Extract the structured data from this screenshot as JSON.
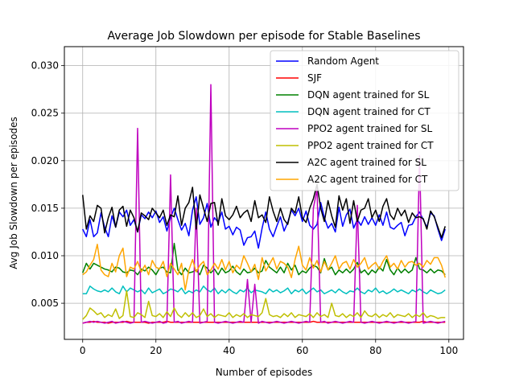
{
  "chart_data": {
    "type": "line",
    "title": "Average Job Slowdown per episode for Stable Baselines",
    "xlabel": "Number of episodes",
    "ylabel": "Avg Job Slowdown per episodes",
    "xlim": [
      -5,
      104
    ],
    "ylim": [
      0.0012,
      0.032
    ],
    "xticks": [
      0,
      20,
      40,
      60,
      80,
      100
    ],
    "yticks": [
      0.005,
      0.01,
      0.015,
      0.02,
      0.025,
      0.03
    ],
    "ytick_labels": [
      "0.005",
      "0.010",
      "0.015",
      "0.020",
      "0.025",
      "0.030"
    ],
    "grid": true,
    "legend_position": "top-right",
    "series": [
      {
        "name": "Random Agent",
        "color": "#0000ff",
        "values": [
          0.0128,
          0.012,
          0.0138,
          0.012,
          0.0124,
          0.0145,
          0.013,
          0.012,
          0.0142,
          0.013,
          0.0146,
          0.0141,
          0.0148,
          0.0132,
          0.0138,
          0.0125,
          0.0143,
          0.0139,
          0.0146,
          0.014,
          0.0147,
          0.0135,
          0.0141,
          0.0126,
          0.014,
          0.015,
          0.0138,
          0.0127,
          0.0134,
          0.0121,
          0.0148,
          0.0162,
          0.0133,
          0.014,
          0.0155,
          0.013,
          0.014,
          0.0135,
          0.0146,
          0.0128,
          0.0131,
          0.0122,
          0.013,
          0.0127,
          0.0111,
          0.0119,
          0.012,
          0.0126,
          0.0108,
          0.0129,
          0.0146,
          0.0128,
          0.012,
          0.0131,
          0.0141,
          0.0126,
          0.0135,
          0.0148,
          0.0142,
          0.015,
          0.0136,
          0.0147,
          0.0132,
          0.0128,
          0.0133,
          0.0156,
          0.014,
          0.0129,
          0.0134,
          0.0125,
          0.0151,
          0.0131,
          0.0143,
          0.0149,
          0.0129,
          0.0138,
          0.0132,
          0.0141,
          0.0133,
          0.014,
          0.0132,
          0.0143,
          0.0132,
          0.0146,
          0.013,
          0.0128,
          0.0132,
          0.0135,
          0.0121,
          0.0132,
          0.0133,
          0.0141,
          0.0146,
          0.0138,
          0.013,
          0.0145,
          0.0142,
          0.0128,
          0.0116,
          0.0128
        ]
      },
      {
        "name": "SJF",
        "color": "#ff0000",
        "values": [
          0.0029,
          0.003,
          0.003,
          0.0031,
          0.003,
          0.003,
          0.003,
          0.0029,
          0.003,
          0.003,
          0.003,
          0.003,
          0.0031,
          0.003,
          0.003,
          0.003,
          0.003,
          0.003,
          0.0029,
          0.003,
          0.003,
          0.003,
          0.003,
          0.0031,
          0.003,
          0.003,
          0.003,
          0.003,
          0.003,
          0.003,
          0.003,
          0.003,
          0.003,
          0.003,
          0.003,
          0.003,
          0.003,
          0.003,
          0.003,
          0.003,
          0.003,
          0.003,
          0.003,
          0.003,
          0.003,
          0.003,
          0.003,
          0.003,
          0.003,
          0.003,
          0.003,
          0.003,
          0.003,
          0.003,
          0.003,
          0.003,
          0.003,
          0.003,
          0.003,
          0.003,
          0.003,
          0.003,
          0.003,
          0.0031,
          0.003,
          0.003,
          0.003,
          0.003,
          0.003,
          0.003,
          0.003,
          0.003,
          0.003,
          0.003,
          0.003,
          0.003,
          0.003,
          0.003,
          0.003,
          0.003,
          0.003,
          0.003,
          0.003,
          0.003,
          0.003,
          0.003,
          0.003,
          0.003,
          0.003,
          0.003,
          0.003,
          0.003,
          0.003,
          0.0031,
          0.003,
          0.003,
          0.003,
          0.003,
          0.003,
          0.003
        ]
      },
      {
        "name": "DQN agent trained for SL",
        "color": "#008000",
        "values": [
          0.0082,
          0.0092,
          0.0086,
          0.0092,
          0.009,
          0.0088,
          0.0086,
          0.0085,
          0.0083,
          0.0088,
          0.0087,
          0.0083,
          0.0082,
          0.0085,
          0.0084,
          0.008,
          0.0086,
          0.0084,
          0.0088,
          0.0085,
          0.008,
          0.0087,
          0.0088,
          0.0083,
          0.0082,
          0.0113,
          0.0085,
          0.008,
          0.0087,
          0.0082,
          0.0083,
          0.0085,
          0.008,
          0.009,
          0.0087,
          0.0082,
          0.0086,
          0.008,
          0.0087,
          0.0082,
          0.0084,
          0.0089,
          0.0083,
          0.008,
          0.0086,
          0.0082,
          0.0083,
          0.0087,
          0.0082,
          0.0084,
          0.0095,
          0.0088,
          0.0085,
          0.0082,
          0.0088,
          0.0082,
          0.0092,
          0.0085,
          0.009,
          0.008,
          0.0084,
          0.0082,
          0.0087,
          0.009,
          0.0088,
          0.0082,
          0.0097,
          0.0085,
          0.0088,
          0.008,
          0.0085,
          0.0082,
          0.0086,
          0.0082,
          0.0086,
          0.0093,
          0.0082,
          0.0085,
          0.008,
          0.0085,
          0.0082,
          0.0088,
          0.0084,
          0.0096,
          0.0085,
          0.008,
          0.0087,
          0.0082,
          0.0086,
          0.0082,
          0.0085,
          0.0098,
          0.0086,
          0.0085,
          0.0082,
          0.0086,
          0.0082,
          0.0085,
          0.0084,
          0.008
        ]
      },
      {
        "name": "DQN agent trained for CT",
        "color": "#00bfbf",
        "values": [
          0.006,
          0.006,
          0.0068,
          0.0065,
          0.0063,
          0.0062,
          0.0064,
          0.0062,
          0.0066,
          0.0062,
          0.006,
          0.0068,
          0.0062,
          0.0066,
          0.0064,
          0.0062,
          0.0064,
          0.006,
          0.0066,
          0.0061,
          0.0063,
          0.0065,
          0.006,
          0.0062,
          0.0065,
          0.0064,
          0.0062,
          0.0066,
          0.006,
          0.0063,
          0.0061,
          0.0064,
          0.0062,
          0.0068,
          0.0064,
          0.0062,
          0.0066,
          0.006,
          0.0064,
          0.0061,
          0.0065,
          0.0062,
          0.006,
          0.0064,
          0.0062,
          0.0066,
          0.0061,
          0.0064,
          0.0063,
          0.0062,
          0.006,
          0.0065,
          0.0062,
          0.0064,
          0.0061,
          0.0063,
          0.0066,
          0.006,
          0.0064,
          0.0062,
          0.0065,
          0.006,
          0.0063,
          0.0066,
          0.0062,
          0.0064,
          0.006,
          0.0062,
          0.0064,
          0.0061,
          0.0065,
          0.0062,
          0.006,
          0.0063,
          0.0062,
          0.0066,
          0.0062,
          0.006,
          0.0064,
          0.0062,
          0.0066,
          0.0061,
          0.0063,
          0.006,
          0.0062,
          0.0065,
          0.0062,
          0.0064,
          0.0062,
          0.006,
          0.0064,
          0.0062,
          0.0065,
          0.0062,
          0.006,
          0.0064,
          0.0062,
          0.006,
          0.0061,
          0.0064
        ]
      },
      {
        "name": "PPO2 agent trained for SL",
        "color": "#bf00bf",
        "values": [
          0.0029,
          0.003,
          0.0031,
          0.003,
          0.0031,
          0.003,
          0.0029,
          0.003,
          0.0031,
          0.0029,
          0.003,
          0.0031,
          0.003,
          0.0029,
          0.003,
          0.0234,
          0.003,
          0.0031,
          0.003,
          0.0029,
          0.003,
          0.0031,
          0.0029,
          0.003,
          0.0185,
          0.003,
          0.0031,
          0.0029,
          0.003,
          0.0031,
          0.003,
          0.015,
          0.0029,
          0.003,
          0.0031,
          0.028,
          0.003,
          0.0029,
          0.003,
          0.0031,
          0.003,
          0.0029,
          0.003,
          0.0031,
          0.003,
          0.0075,
          0.003,
          0.007,
          0.0029,
          0.0031,
          0.003,
          0.0029,
          0.003,
          0.0031,
          0.003,
          0.0029,
          0.003,
          0.0031,
          0.003,
          0.0029,
          0.003,
          0.0031,
          0.003,
          0.015,
          0.017,
          0.003,
          0.0031,
          0.0029,
          0.003,
          0.0031,
          0.003,
          0.0029,
          0.003,
          0.0031,
          0.003,
          0.0153,
          0.003,
          0.0029,
          0.003,
          0.0031,
          0.003,
          0.0029,
          0.003,
          0.0031,
          0.003,
          0.0029,
          0.003,
          0.0031,
          0.003,
          0.0029,
          0.003,
          0.0031,
          0.0205,
          0.0029,
          0.003,
          0.0031,
          0.003,
          0.0029,
          0.003,
          0.0031
        ]
      },
      {
        "name": "PPO2 agent trained for CT",
        "color": "#bfbf00",
        "values": [
          0.0033,
          0.0037,
          0.0045,
          0.0042,
          0.0038,
          0.004,
          0.0035,
          0.0038,
          0.0036,
          0.0044,
          0.0034,
          0.0037,
          0.0063,
          0.0036,
          0.0035,
          0.004,
          0.0038,
          0.0035,
          0.0052,
          0.0037,
          0.0036,
          0.0039,
          0.0035,
          0.0041,
          0.0036,
          0.0045,
          0.0038,
          0.0035,
          0.004,
          0.0036,
          0.004,
          0.0035,
          0.0037,
          0.0044,
          0.0036,
          0.0039,
          0.0035,
          0.0038,
          0.0037,
          0.0036,
          0.004,
          0.0035,
          0.0038,
          0.0036,
          0.0039,
          0.0035,
          0.0038,
          0.0037,
          0.0036,
          0.004,
          0.0055,
          0.0038,
          0.0036,
          0.0037,
          0.0035,
          0.0039,
          0.0036,
          0.004,
          0.0035,
          0.0038,
          0.0037,
          0.0036,
          0.0039,
          0.0035,
          0.004,
          0.0036,
          0.0038,
          0.0035,
          0.005,
          0.0037,
          0.0036,
          0.0039,
          0.0035,
          0.0038,
          0.0036,
          0.004,
          0.0035,
          0.0042,
          0.0037,
          0.0036,
          0.0039,
          0.0035,
          0.0038,
          0.0036,
          0.004,
          0.0035,
          0.0038,
          0.0037,
          0.0036,
          0.0039,
          0.0035,
          0.0038,
          0.0036,
          0.004,
          0.0035,
          0.0037,
          0.0036,
          0.0034,
          0.0035,
          0.0035
        ]
      },
      {
        "name": "A2C agent trained for SL",
        "color": "#000000",
        "values": [
          0.0164,
          0.0128,
          0.0142,
          0.0136,
          0.0153,
          0.015,
          0.0124,
          0.014,
          0.0151,
          0.013,
          0.0148,
          0.0152,
          0.0131,
          0.0148,
          0.014,
          0.0125,
          0.0145,
          0.0142,
          0.0138,
          0.015,
          0.0145,
          0.014,
          0.0148,
          0.0132,
          0.0143,
          0.0141,
          0.0163,
          0.0132,
          0.015,
          0.0156,
          0.0172,
          0.0128,
          0.0164,
          0.015,
          0.0136,
          0.0155,
          0.0156,
          0.0132,
          0.016,
          0.0142,
          0.0138,
          0.0143,
          0.0152,
          0.014,
          0.0145,
          0.0148,
          0.0136,
          0.0158,
          0.014,
          0.0143,
          0.0135,
          0.0162,
          0.0147,
          0.0136,
          0.015,
          0.0138,
          0.0133,
          0.015,
          0.0145,
          0.0162,
          0.014,
          0.0135,
          0.015,
          0.016,
          0.0175,
          0.015,
          0.0136,
          0.0158,
          0.0142,
          0.013,
          0.0163,
          0.0148,
          0.016,
          0.0134,
          0.0158,
          0.0136,
          0.0148,
          0.015,
          0.016,
          0.014,
          0.0148,
          0.0136,
          0.0152,
          0.016,
          0.0143,
          0.0138,
          0.015,
          0.0142,
          0.0148,
          0.0135,
          0.0145,
          0.014,
          0.0141,
          0.0139,
          0.0128,
          0.0147,
          0.0141,
          0.013,
          0.0119,
          0.0131
        ]
      },
      {
        "name": "A2C agent trained for CT",
        "color": "#ffa500",
        "values": [
          0.008,
          0.0083,
          0.009,
          0.0096,
          0.0112,
          0.0085,
          0.008,
          0.0078,
          0.0092,
          0.0083,
          0.01,
          0.0108,
          0.0078,
          0.0088,
          0.0086,
          0.0094,
          0.0083,
          0.009,
          0.008,
          0.0095,
          0.0088,
          0.0086,
          0.0094,
          0.0078,
          0.0092,
          0.0086,
          0.008,
          0.0092,
          0.0064,
          0.0085,
          0.0096,
          0.0083,
          0.009,
          0.0094,
          0.008,
          0.0085,
          0.0092,
          0.0086,
          0.0096,
          0.0085,
          0.0094,
          0.0082,
          0.009,
          0.0086,
          0.01,
          0.0092,
          0.0083,
          0.0091,
          0.0075,
          0.0098,
          0.0084,
          0.0091,
          0.0098,
          0.0086,
          0.0094,
          0.0092,
          0.0088,
          0.0077,
          0.0096,
          0.011,
          0.009,
          0.0085,
          0.0098,
          0.0087,
          0.0095,
          0.0083,
          0.0094,
          0.0085,
          0.0092,
          0.01,
          0.0086,
          0.0092,
          0.0094,
          0.0086,
          0.0096,
          0.0088,
          0.0092,
          0.0098,
          0.0086,
          0.009,
          0.0093,
          0.0086,
          0.0094,
          0.01,
          0.0088,
          0.0092,
          0.0086,
          0.0095,
          0.0088,
          0.0093,
          0.0094,
          0.009,
          0.0092,
          0.0088,
          0.0095,
          0.0091,
          0.0098,
          0.0098,
          0.009,
          0.0077
        ]
      }
    ]
  }
}
